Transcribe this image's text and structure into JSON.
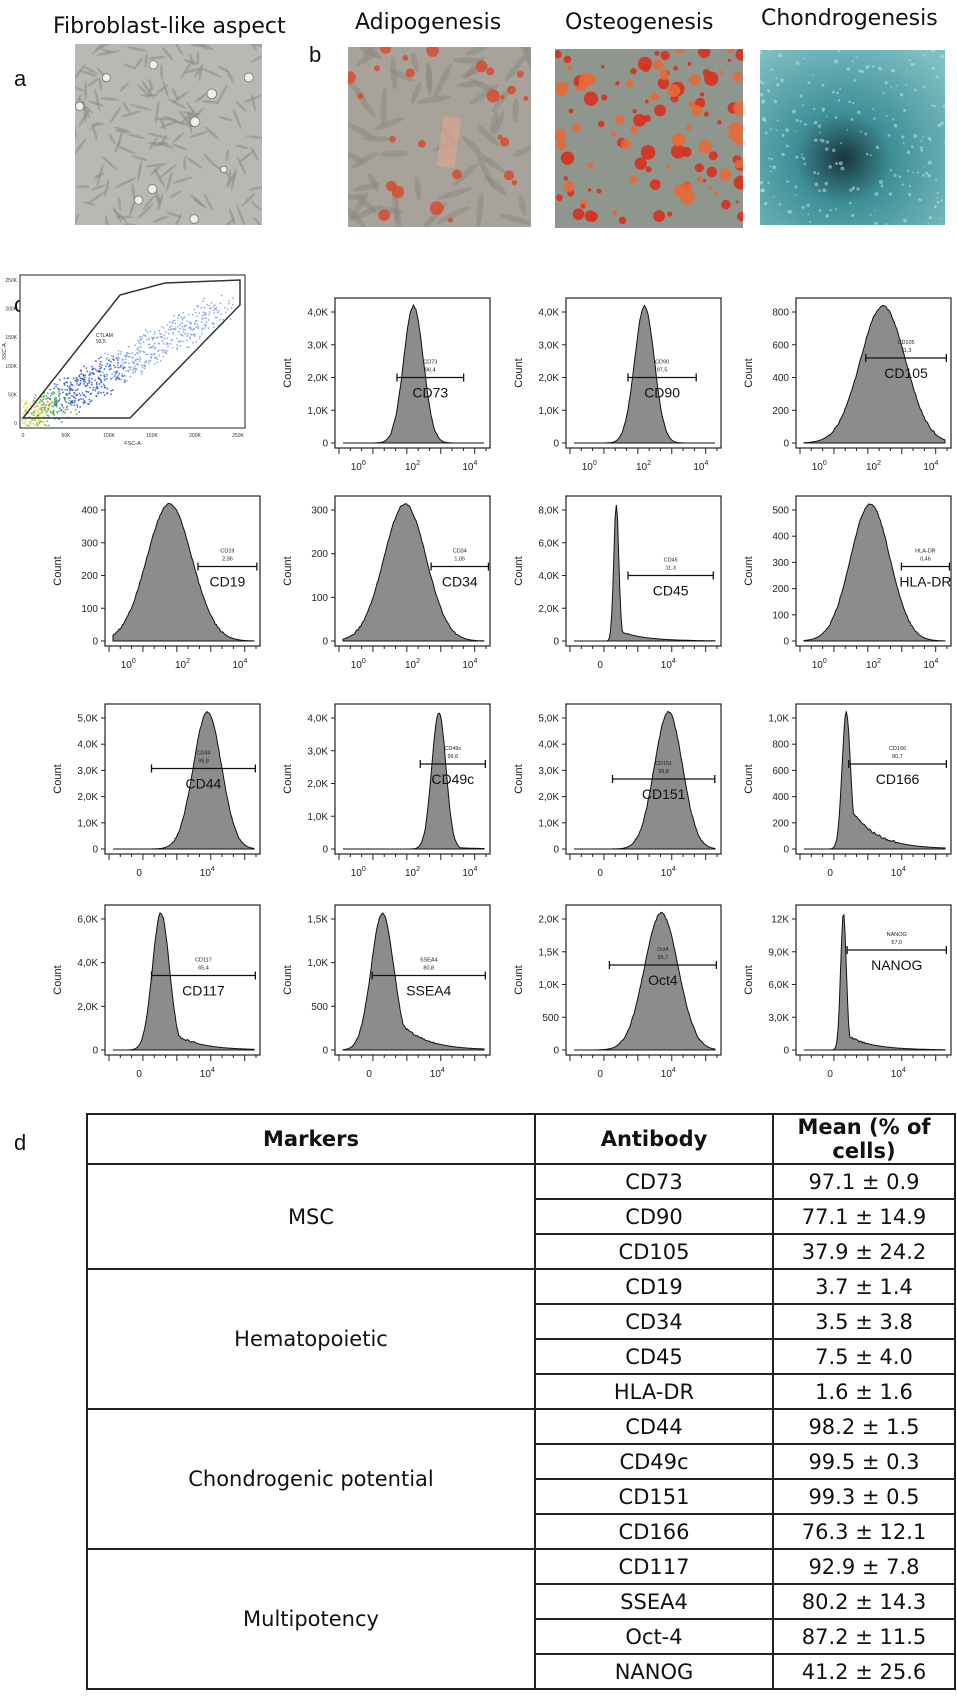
{
  "panels": {
    "a": "a",
    "b": "b",
    "c": "c",
    "d": "d"
  },
  "micrographs": [
    {
      "caption": "Fibroblast-like aspect",
      "icon": "phase-contrast-fibroblast-micrograph"
    },
    {
      "caption": "Adipogenesis",
      "icon": "oil-red-adipogenesis-micrograph"
    },
    {
      "caption": "Osteogenesis",
      "icon": "alizarin-red-osteogenesis-micrograph"
    },
    {
      "caption": "Chondrogenesis",
      "icon": "alcian-blue-chondrogenesis-micrograph"
    }
  ],
  "chart_data": [
    {
      "type": "scatter",
      "name": "gate",
      "gate_label": "CTLAM",
      "gate_value": "93,5",
      "xlabel": "FSC-A",
      "ylabel": "SSC-A",
      "xticks": [
        "0",
        "50K",
        "100K",
        "150K",
        "200K",
        "250K"
      ],
      "yticks": [
        "0",
        "50K",
        "100K",
        "150K",
        "200K",
        "250K"
      ]
    },
    {
      "type": "area",
      "marker": "CD73",
      "gate_text": "CD73",
      "gate_value": "96,4",
      "ylabel": "Count",
      "yticks": [
        "0",
        "1,0K",
        "2,0K",
        "3,0K",
        "4,0K"
      ],
      "xticks": [
        "10^0",
        "10^2",
        "10^4"
      ],
      "scale": "log",
      "peak_pos": 0.5,
      "peak_width": 0.07,
      "tail": 0.0,
      "gate_range": [
        0.4,
        0.83
      ],
      "gate_frac": 0.47
    },
    {
      "type": "area",
      "marker": "CD90",
      "gate_text": "CD90",
      "gate_value": "97,5",
      "ylabel": "Count",
      "yticks": [
        "0",
        "1,0K",
        "2,0K",
        "3,0K",
        "4,0K"
      ],
      "xticks": [
        "10^0",
        "10^2",
        "10^4"
      ],
      "scale": "log",
      "peak_pos": 0.5,
      "peak_width": 0.07,
      "tail": 0.0,
      "gate_range": [
        0.4,
        0.84
      ],
      "gate_frac": 0.47
    },
    {
      "type": "area",
      "marker": "CD105",
      "gate_text": "CD105",
      "gate_value": "71,3",
      "ylabel": "Count",
      "yticks": [
        "0",
        "200",
        "400",
        "600",
        "800"
      ],
      "xticks": [
        "10^0",
        "10^2",
        "10^4"
      ],
      "scale": "log",
      "peak_pos": 0.56,
      "peak_width": 0.16,
      "tail": 0.0,
      "gate_range": [
        0.45,
        0.97
      ],
      "gate_frac": 0.6
    },
    {
      "type": "area",
      "marker": "CD19",
      "gate_text": "CD19",
      "gate_value": "2,36",
      "ylabel": "Count",
      "yticks": [
        "0",
        "100",
        "200",
        "300",
        "400"
      ],
      "xticks": [
        "10^0",
        "10^2",
        "10^4"
      ],
      "scale": "log",
      "peak_pos": 0.4,
      "peak_width": 0.16,
      "tail": 0.0,
      "gate_range": [
        0.6,
        0.98
      ],
      "gate_frac": 0.53
    },
    {
      "type": "area",
      "marker": "CD34",
      "gate_text": "CD34",
      "gate_value": "1,05",
      "ylabel": "Count",
      "yticks": [
        "0",
        "100",
        "200",
        "300"
      ],
      "xticks": [
        "10^0",
        "10^2",
        "10^4"
      ],
      "scale": "log",
      "peak_pos": 0.44,
      "peak_width": 0.15,
      "tail": 0.0,
      "gate_range": [
        0.62,
        0.99
      ],
      "gate_frac": 0.53
    },
    {
      "type": "area",
      "marker": "CD45",
      "gate_text": "CD45",
      "gate_value": "11,3",
      "ylabel": "Count",
      "yticks": [
        "0",
        "2,0K",
        "4,0K",
        "6,0K",
        "8,0K"
      ],
      "xticks": [
        "0",
        "10^4"
      ],
      "scale": "biex",
      "peak_pos": 0.3,
      "peak_width": 0.018,
      "tail": 0.08,
      "gate_range": [
        0.4,
        0.95
      ],
      "gate_frac": 0.47
    },
    {
      "type": "area",
      "marker": "HLA-DR",
      "gate_text": "HLA-DR",
      "gate_value": "0,46",
      "ylabel": "Count",
      "yticks": [
        "0",
        "100",
        "200",
        "300",
        "400",
        "500"
      ],
      "xticks": [
        "10^0",
        "10^2",
        "10^4"
      ],
      "scale": "log",
      "peak_pos": 0.47,
      "peak_width": 0.14,
      "tail": 0.0,
      "gate_range": [
        0.68,
        0.99
      ],
      "gate_frac": 0.53
    },
    {
      "type": "area",
      "marker": "CD44",
      "gate_text": "CD44",
      "gate_value": "99,8",
      "ylabel": "Count",
      "yticks": [
        "0",
        "1,0K",
        "2,0K",
        "3,0K",
        "4,0K",
        "5,0K"
      ],
      "xticks": [
        "0",
        "10^4"
      ],
      "scale": "biex",
      "peak_pos": 0.67,
      "peak_width": 0.1,
      "tail": 0.0,
      "gate_range": [
        0.3,
        0.97
      ],
      "gate_frac": 0.57
    },
    {
      "type": "area",
      "marker": "CD49c",
      "gate_text": "CD49c",
      "gate_value": "99,6",
      "ylabel": "Count",
      "yticks": [
        "0",
        "1,0K",
        "2,0K",
        "3,0K",
        "4,0K"
      ],
      "xticks": [
        "10^0",
        "10^2",
        "10^4"
      ],
      "scale": "log",
      "peak_pos": 0.68,
      "peak_width": 0.05,
      "tail": 0.02,
      "gate_range": [
        0.55,
        0.97
      ],
      "gate_frac": 0.6
    },
    {
      "type": "area",
      "marker": "CD151",
      "gate_text": "CD151",
      "gate_value": "99,8",
      "ylabel": "Count",
      "yticks": [
        "0",
        "1,0K",
        "2,0K",
        "3,0K",
        "4,0K",
        "5,0K"
      ],
      "xticks": [
        "0",
        "10^4"
      ],
      "scale": "biex",
      "peak_pos": 0.67,
      "peak_width": 0.1,
      "tail": 0.0,
      "gate_range": [
        0.3,
        0.96
      ],
      "gate_frac": 0.5
    },
    {
      "type": "area",
      "marker": "CD166",
      "gate_text": "CD166",
      "gate_value": "80,7",
      "ylabel": "Count",
      "yticks": [
        "0",
        "200",
        "400",
        "600",
        "800",
        "1,0K"
      ],
      "xticks": [
        "0",
        "10^4"
      ],
      "scale": "biex",
      "peak_pos": 0.3,
      "peak_width": 0.03,
      "tail": 0.35,
      "gate_range": [
        0.34,
        0.97
      ],
      "gate_frac": 0.6
    },
    {
      "type": "area",
      "marker": "CD117",
      "gate_text": "CD117",
      "gate_value": "65,4",
      "ylabel": "Count",
      "yticks": [
        "0",
        "2,0K",
        "4,0K",
        "6,0K"
      ],
      "xticks": [
        "0",
        "10^4"
      ],
      "scale": "biex",
      "peak_pos": 0.34,
      "peak_width": 0.06,
      "tail": 0.2,
      "gate_range": [
        0.3,
        0.97
      ],
      "gate_frac": 0.53
    },
    {
      "type": "area",
      "marker": "SSEA4",
      "gate_text": "SSEA4",
      "gate_value": "80,8",
      "ylabel": "Count",
      "yticks": [
        "0",
        "500",
        "1,0K",
        "1,5K"
      ],
      "xticks": [
        "0",
        "10^4"
      ],
      "scale": "biex",
      "peak_pos": 0.28,
      "peak_width": 0.08,
      "tail": 0.4,
      "gate_range": [
        0.24,
        0.97
      ],
      "gate_frac": 0.53
    },
    {
      "type": "area",
      "marker": "Oct4",
      "gate_text": "Oct4",
      "gate_value": "95,7",
      "ylabel": "Count",
      "yticks": [
        "0",
        "500",
        "1,0K",
        "1,5K",
        "2,0K"
      ],
      "xticks": [
        "0",
        "10^4"
      ],
      "scale": "biex",
      "peak_pos": 0.62,
      "peak_width": 0.12,
      "tail": 0.0,
      "gate_range": [
        0.28,
        0.97
      ],
      "gate_frac": 0.6
    },
    {
      "type": "area",
      "marker": "NANOG",
      "gate_text": "NANOG",
      "gate_value": "57,0",
      "ylabel": "Count",
      "yticks": [
        "0",
        "3,0K",
        "6,0K",
        "9,0K",
        "12K"
      ],
      "xticks": [
        "0",
        "10^4"
      ],
      "scale": "biex",
      "peak_pos": 0.28,
      "peak_width": 0.02,
      "tail": 0.12,
      "gate_range": [
        0.33,
        0.97
      ],
      "gate_frac": 0.7
    }
  ],
  "table": {
    "headers": [
      "Markers",
      "Antibody",
      "Mean (% of cells)"
    ],
    "groups": [
      {
        "category": "MSC",
        "rows": [
          [
            "CD73",
            "97.1 ± 0.9"
          ],
          [
            "CD90",
            "77.1 ± 14.9"
          ],
          [
            "CD105",
            "37.9 ± 24.2"
          ]
        ]
      },
      {
        "category": "Hematopoietic",
        "rows": [
          [
            "CD19",
            "3.7 ± 1.4"
          ],
          [
            "CD34",
            "3.5 ± 3.8"
          ],
          [
            "CD45",
            "7.5 ± 4.0"
          ],
          [
            "HLA-DR",
            "1.6 ± 1.6"
          ]
        ]
      },
      {
        "category": "Chondrogenic potential",
        "rows": [
          [
            "CD44",
            "98.2 ± 1.5"
          ],
          [
            "CD49c",
            "99.5 ± 0.3"
          ],
          [
            "CD151",
            "99.3 ± 0.5"
          ],
          [
            "CD166",
            "76.3 ± 12.1"
          ]
        ]
      },
      {
        "category": "Multipotency",
        "rows": [
          [
            "CD117",
            "92.9 ± 7.8"
          ],
          [
            "SSEA4",
            "80.2 ± 14.3"
          ],
          [
            "Oct-4",
            "87.2 ± 11.5"
          ],
          [
            "NANOG",
            "41.2 ± 25.6"
          ]
        ]
      }
    ]
  },
  "colors": {
    "histogram_fill": "#8c8c8c",
    "histogram_stroke": "#111111",
    "adipo_stain": "#d84a2e",
    "osteo_stain": "#d9301c",
    "chondro_stain": "#3f8f98",
    "phase_bg": "#b9b9b4"
  }
}
